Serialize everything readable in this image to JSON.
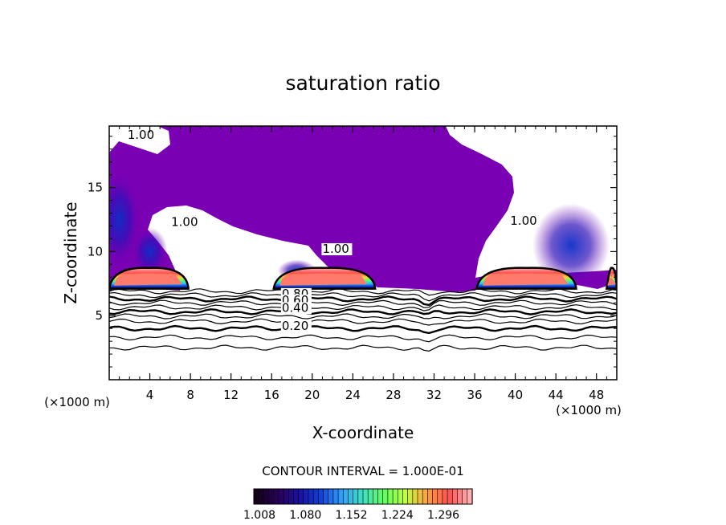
{
  "chart_data": {
    "type": "heatmap",
    "title": "saturation ratio",
    "xlabel": "X-coordinate",
    "ylabel": "Z-coordinate",
    "x_unit_left": "(×1000 m)",
    "x_unit_right": "(×1000 m)",
    "xlim": [
      0,
      50
    ],
    "ylim": [
      0,
      19.8
    ],
    "x_ticks": [
      4,
      8,
      12,
      16,
      20,
      24,
      28,
      32,
      36,
      40,
      44,
      48
    ],
    "y_ticks": [
      5,
      10,
      15
    ],
    "contour_interval_label": "CONTOUR INTERVAL = 1.000E-01",
    "contour_labels": [
      {
        "text": "1.00",
        "x": 1.8,
        "y": 18.8
      },
      {
        "text": "1.00",
        "x": 6.1,
        "y": 12.0
      },
      {
        "text": "1.00",
        "x": 21.0,
        "y": 9.9
      },
      {
        "text": "1.00",
        "x": 39.5,
        "y": 12.1
      },
      {
        "text": "0.80",
        "x": 17.0,
        "y": 6.4
      },
      {
        "text": "0.60",
        "x": 17.0,
        "y": 5.9
      },
      {
        "text": "0.40",
        "x": 17.0,
        "y": 5.3
      },
      {
        "text": "0.20",
        "x": 17.0,
        "y": 3.9
      }
    ],
    "colorbar": {
      "min": 1.008,
      "max": 1.35,
      "tick_labels": [
        "1.008",
        "1.080",
        "1.152",
        "1.224",
        "1.296"
      ],
      "colors": [
        "#140018",
        "#2a0058",
        "#1a10a0",
        "#1040d8",
        "#30a0ff",
        "#40e0c0",
        "#60ff60",
        "#c0ff40",
        "#ffa040",
        "#ff5050",
        "#ffb0b0"
      ]
    },
    "saturated_fill_color": "#7a00b4",
    "high_regions": [
      {
        "x_center": 3.8,
        "x_range": [
          0,
          7.8
        ]
      },
      {
        "x_center": 21.5,
        "x_range": [
          16.2,
          26.2
        ]
      },
      {
        "x_center": 41.5,
        "x_range": [
          36.2,
          46.0
        ]
      },
      {
        "x_center": 50.0,
        "x_range": [
          49.0,
          50.0
        ]
      }
    ]
  }
}
